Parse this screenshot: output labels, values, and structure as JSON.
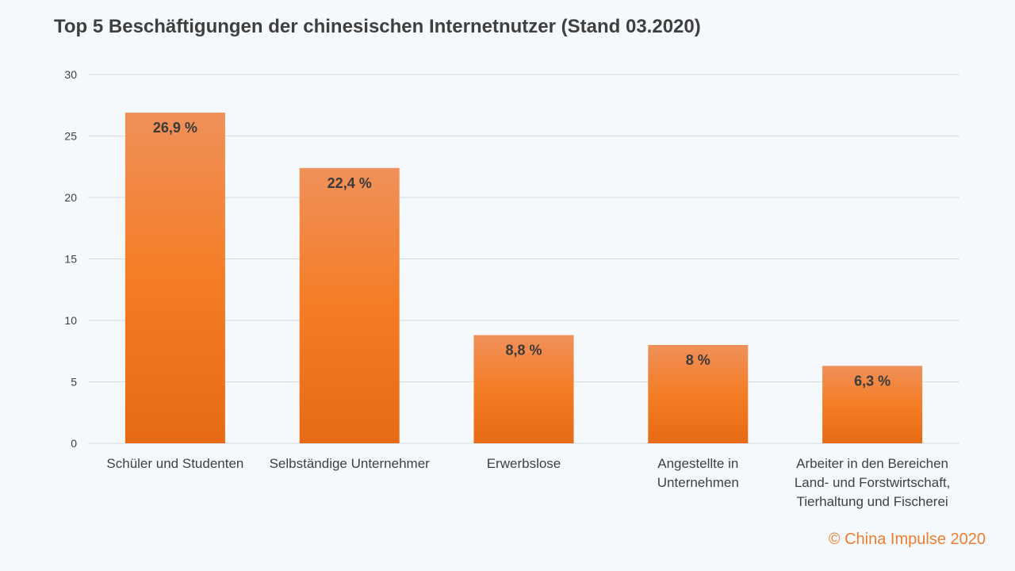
{
  "title": "Top 5 Beschäftigungen der chinesischen Internetnutzer (Stand 03.2020)",
  "copyright": "© China Impulse 2020",
  "colors": {
    "bar_top": "#f0905a",
    "bar_mid": "#f47d25",
    "bar_bottom": "#e76a14",
    "grid": "#d9dde2",
    "axis_text": "#404040",
    "label_text": "#3a3a3a",
    "copyright": "#ed7d31"
  },
  "chart_data": {
    "type": "bar",
    "title": "Top 5 Beschäftigungen der chinesischen Internetnutzer (Stand 03.2020)",
    "categories": [
      [
        "Schüler und Studenten"
      ],
      [
        "Selbständige Unternehmer"
      ],
      [
        "Erwerbslose"
      ],
      [
        "Angestellte in",
        "Unternehmen"
      ],
      [
        "Arbeiter in den Bereichen",
        "Land- und Forstwirtschaft,",
        "Tierhaltung und Fischerei"
      ]
    ],
    "values": [
      26.9,
      22.4,
      8.8,
      8,
      6.3
    ],
    "data_labels": [
      "26,9 %",
      "22,4 %",
      "8,8 %",
      "8 %",
      "6,3 %"
    ],
    "yticks": [
      "0",
      "5",
      "10",
      "15",
      "20",
      "25",
      "30"
    ],
    "ylim": [
      0,
      30
    ],
    "grid": true,
    "legend": false
  }
}
